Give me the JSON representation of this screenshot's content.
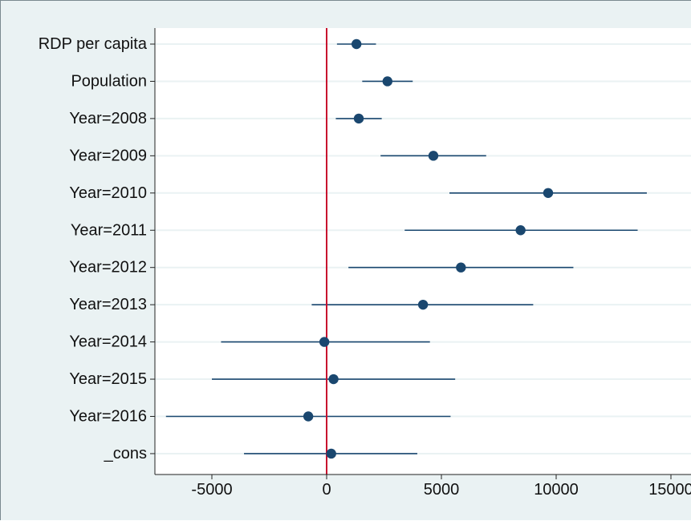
{
  "chart_data": {
    "type": "scatter",
    "subtype": "coefficient-plot-with-confidence-intervals",
    "title": "",
    "xlabel": "",
    "ylabel": "",
    "categories": [
      "RDP per capita",
      "Population",
      "Year=2008",
      "Year=2009",
      "Year=2010",
      "Year=2011",
      "Year=2012",
      "Year=2013",
      "Year=2014",
      "Year=2015",
      "Year=2016",
      "_cons"
    ],
    "series": [
      {
        "estimate": [
          1300,
          2650,
          1400,
          4650,
          9650,
          8450,
          5850,
          4200,
          -100,
          300,
          -800,
          200
        ],
        "ci_low": [
          450,
          1550,
          400,
          2350,
          5350,
          3400,
          950,
          -650,
          -4600,
          -5000,
          -7000,
          -3600
        ],
        "ci_high": [
          2150,
          3750,
          2400,
          6950,
          13950,
          13550,
          10750,
          9000,
          4500,
          5600,
          5400,
          3950
        ]
      }
    ],
    "xlim": [
      -7300,
      15000
    ],
    "xticks": [
      -5000,
      0,
      5000,
      10000,
      15000
    ],
    "xtick_labels": [
      "-5000",
      "0",
      "5000",
      "10000",
      "15000"
    ],
    "reference_line": {
      "x": 0,
      "color": "#c8102e"
    },
    "marker_color": "#1a476f",
    "grid": "horizontal",
    "grid_color": "#eaf2f3",
    "plot_background": "#ffffff",
    "outer_background": "#eaf2f3",
    "legend": "none"
  }
}
